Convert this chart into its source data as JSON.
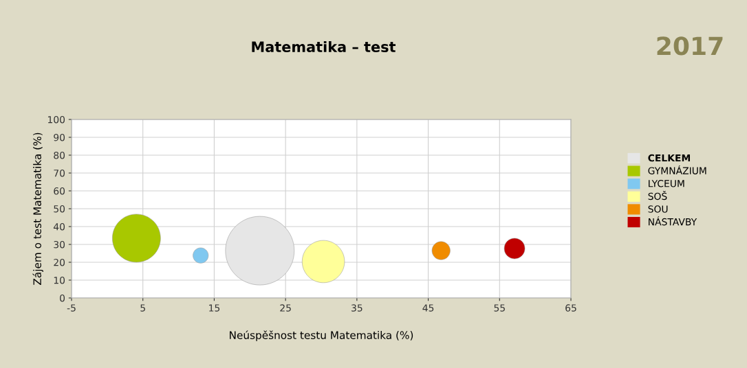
{
  "chart_data": {
    "type": "bubble",
    "title": "Matematika – test",
    "xlabel": "Neúspěšnost testu Matematika (%)",
    "ylabel": "Zájem o test Matematika (%)",
    "annotations": [
      "2017"
    ],
    "xlim": [
      -5,
      65
    ],
    "xticks": [
      -5,
      5,
      15,
      25,
      35,
      45,
      55,
      65
    ],
    "ylim": [
      0,
      100
    ],
    "yticks": [
      0,
      10,
      20,
      30,
      40,
      50,
      60,
      70,
      80,
      90,
      100
    ],
    "grid": true,
    "legend": "right",
    "series": [
      {
        "name": "CELKEM",
        "color": "#e6e6e6",
        "x": [
          21.4
        ],
        "values": [
          26.5
        ],
        "sizes": [
          1
        ]
      },
      {
        "name": "GYMNÁZIUM",
        "color": "#a8c800",
        "x": [
          4.1
        ],
        "values": [
          33.5
        ],
        "sizes": [
          0.49
        ]
      },
      {
        "name": "LYCEUM",
        "color": "#80c8f0",
        "x": [
          13.1
        ],
        "values": [
          23.8
        ],
        "sizes": [
          0.05
        ]
      },
      {
        "name": "SOŠ",
        "color": "#ffff99",
        "x": [
          30.3
        ],
        "values": [
          20.4
        ],
        "sizes": [
          0.38
        ]
      },
      {
        "name": "SOU",
        "color": "#f08c00",
        "x": [
          46.8
        ],
        "values": [
          26.5
        ],
        "sizes": [
          0.07
        ]
      },
      {
        "name": "NÁSTAVBY",
        "color": "#c00000",
        "x": [
          57.1
        ],
        "values": [
          27.7
        ],
        "sizes": [
          0.09
        ]
      }
    ]
  }
}
